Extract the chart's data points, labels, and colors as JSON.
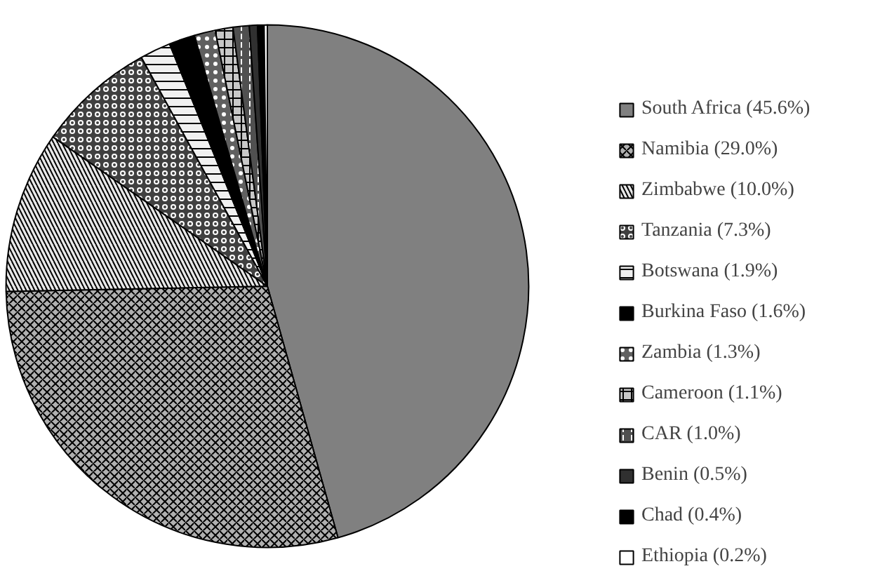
{
  "chart_data": {
    "type": "pie",
    "categories": [
      "South Africa (45.6%)",
      "Namibia (29.0%)",
      "Zimbabwe (10.0%)",
      "Tanzania (7.3%)",
      "Botswana (1.9%)",
      "Burkina Faso (1.6%)",
      "Zambia (1.3%)",
      "Cameroon (1.1%)",
      "CAR (1.0%)",
      "Benin (0.5%)",
      "Chad (0.4%)",
      "Ethiopia (0.2%)"
    ],
    "values": [
      45.6,
      29.0,
      10.0,
      7.3,
      1.9,
      1.6,
      1.3,
      1.1,
      1.0,
      0.5,
      0.4,
      0.2
    ],
    "colors": [
      "#808080",
      "#b0b0b0",
      "#e8e8e8",
      "#404040",
      "#f0f0f0",
      "#000000",
      "#606060",
      "#c8c8c8",
      "#505050",
      "#303030",
      "#000000",
      "#ffffff"
    ],
    "legend": "right"
  }
}
